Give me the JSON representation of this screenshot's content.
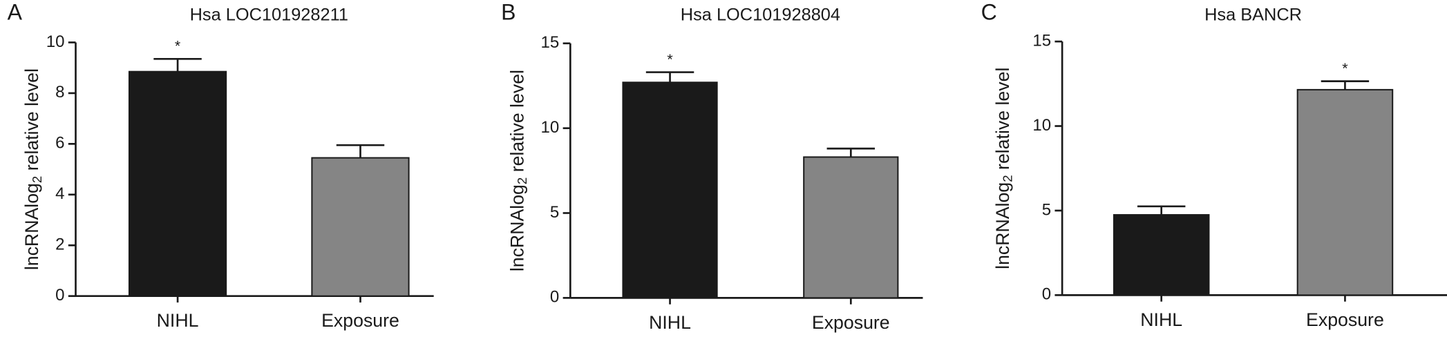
{
  "chart_data": [
    {
      "type": "bar",
      "panel_label": "A",
      "title": "Hsa LOC101928211",
      "ylabel": {
        "main": "lncRNAlog",
        "sub": "2",
        "rest": " relative level"
      },
      "categories": [
        "NIHL",
        "Exposure"
      ],
      "values": [
        8.85,
        5.45
      ],
      "errors": [
        0.5,
        0.5
      ],
      "colors": [
        "#1a1a1a",
        "#858585"
      ],
      "significance": [
        "*",
        null
      ],
      "ylim": [
        0,
        10
      ],
      "yticks": [
        0,
        2,
        4,
        6,
        8,
        10
      ]
    },
    {
      "type": "bar",
      "panel_label": "B",
      "title": "Hsa LOC101928804",
      "ylabel": {
        "main": "lncRNAlog",
        "sub": "2",
        "rest": " relative level"
      },
      "categories": [
        "NIHL",
        "Exposure"
      ],
      "values": [
        12.7,
        8.3
      ],
      "errors": [
        0.6,
        0.5
      ],
      "colors": [
        "#1a1a1a",
        "#858585"
      ],
      "significance": [
        "*",
        null
      ],
      "ylim": [
        0,
        15
      ],
      "yticks": [
        0,
        5,
        10,
        15
      ]
    },
    {
      "type": "bar",
      "panel_label": "C",
      "title": "Hsa BANCR",
      "ylabel": {
        "main": "lncRNAlog",
        "sub": "2",
        "rest": " relative level"
      },
      "categories": [
        "NIHL",
        "Exposure"
      ],
      "values": [
        4.75,
        12.15
      ],
      "errors": [
        0.5,
        0.5
      ],
      "colors": [
        "#1a1a1a",
        "#858585"
      ],
      "significance": [
        null,
        "*"
      ],
      "ylim": [
        0,
        15
      ],
      "yticks": [
        0,
        5,
        10,
        15
      ]
    }
  ]
}
